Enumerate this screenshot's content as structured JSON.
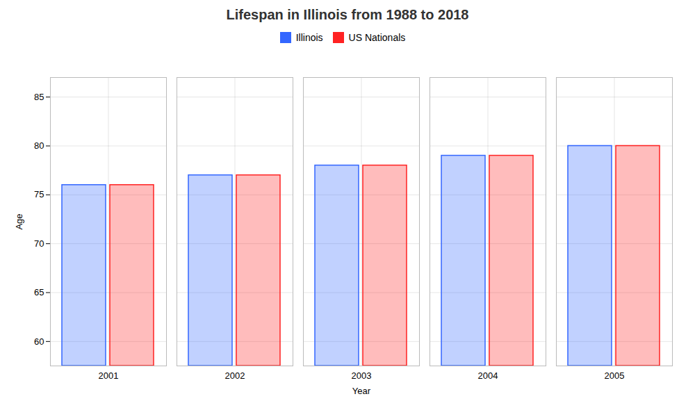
{
  "chart_data": {
    "type": "bar",
    "title": "Lifespan in Illinois from 1988 to 2018",
    "xlabel": "Year",
    "ylabel": "Age",
    "categories": [
      "2001",
      "2002",
      "2003",
      "2004",
      "2005"
    ],
    "series": [
      {
        "name": "Illinois",
        "color": "#3366ff",
        "values": [
          76.0,
          77.0,
          78.0,
          79.0,
          80.0
        ]
      },
      {
        "name": "US Nationals",
        "color": "#ff2222",
        "values": [
          76.0,
          77.0,
          78.0,
          79.0,
          80.0
        ]
      }
    ],
    "ylim": [
      57.5,
      87
    ],
    "yticks": [
      60,
      65,
      70,
      75,
      80,
      85
    ],
    "grid": true,
    "legend": "top"
  }
}
